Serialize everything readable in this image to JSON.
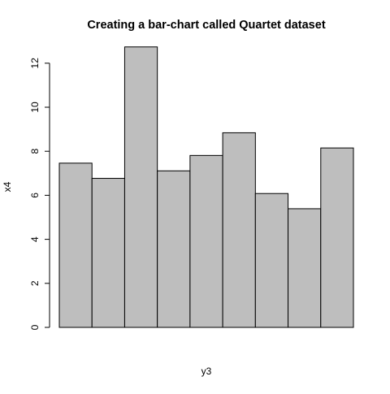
{
  "chart_data": {
    "type": "bar",
    "title": "Creating a bar-chart called Quartet dataset",
    "xlabel": "y3",
    "ylabel": "x4",
    "categories": [
      "",
      "",
      "",
      "",
      "",
      "",
      "",
      "",
      ""
    ],
    "values": [
      7.46,
      6.77,
      12.74,
      7.11,
      7.81,
      8.84,
      6.08,
      5.39,
      8.15
    ],
    "ylim": [
      0,
      12
    ],
    "yticks": [
      0,
      2,
      4,
      6,
      8,
      10,
      12
    ],
    "ytick_labels": [
      "0",
      "2",
      "4",
      "6",
      "8",
      "10",
      "12"
    ],
    "bar_color": "#bebebe",
    "border_color": "#000000",
    "grid": false,
    "legend": "none"
  }
}
